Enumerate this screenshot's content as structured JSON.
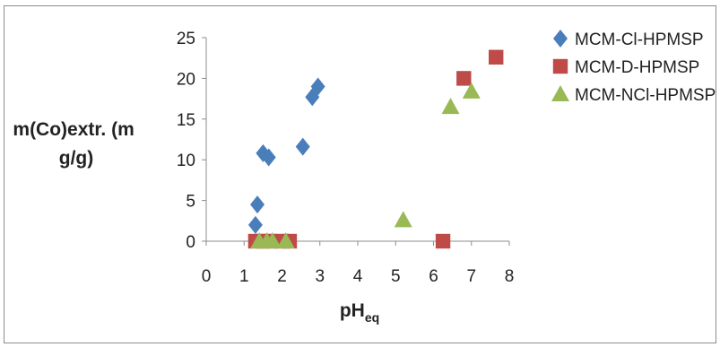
{
  "chart_data": {
    "type": "scatter",
    "xlabel": "pH",
    "xlabel_subscript": "eq",
    "ylabel_lines": [
      "m(Co)extr. (m",
      "g/g)"
    ],
    "xlim": [
      0,
      8
    ],
    "ylim": [
      0,
      25
    ],
    "x_ticks": [
      0,
      1,
      2,
      3,
      4,
      5,
      6,
      7,
      8
    ],
    "y_ticks": [
      0,
      5,
      10,
      15,
      20,
      25
    ],
    "grid": false,
    "legend_position": "right",
    "series": [
      {
        "name": "MCM-Cl-HPMSP",
        "marker": "diamond",
        "color": "#4a7ebb",
        "points": [
          [
            1.3,
            2.0
          ],
          [
            1.35,
            4.5
          ],
          [
            1.5,
            10.8
          ],
          [
            1.65,
            10.3
          ],
          [
            2.55,
            11.6
          ],
          [
            2.8,
            17.7
          ],
          [
            2.95,
            19.0
          ]
        ]
      },
      {
        "name": "MCM-D-HPMSP",
        "marker": "square",
        "color": "#be4b48",
        "points": [
          [
            1.3,
            0.0
          ],
          [
            1.5,
            0.0
          ],
          [
            1.7,
            0.0
          ],
          [
            2.0,
            0.0
          ],
          [
            2.2,
            0.0
          ],
          [
            6.25,
            0.0
          ],
          [
            6.8,
            20.0
          ],
          [
            7.65,
            22.6
          ]
        ]
      },
      {
        "name": "MCM-NCl-HPMSP",
        "marker": "triangle",
        "color": "#98b954",
        "points": [
          [
            1.4,
            0.0
          ],
          [
            1.6,
            0.0
          ],
          [
            1.75,
            0.0
          ],
          [
            2.1,
            0.0
          ],
          [
            5.2,
            2.6
          ],
          [
            6.45,
            16.5
          ],
          [
            7.0,
            18.4
          ]
        ]
      }
    ]
  }
}
